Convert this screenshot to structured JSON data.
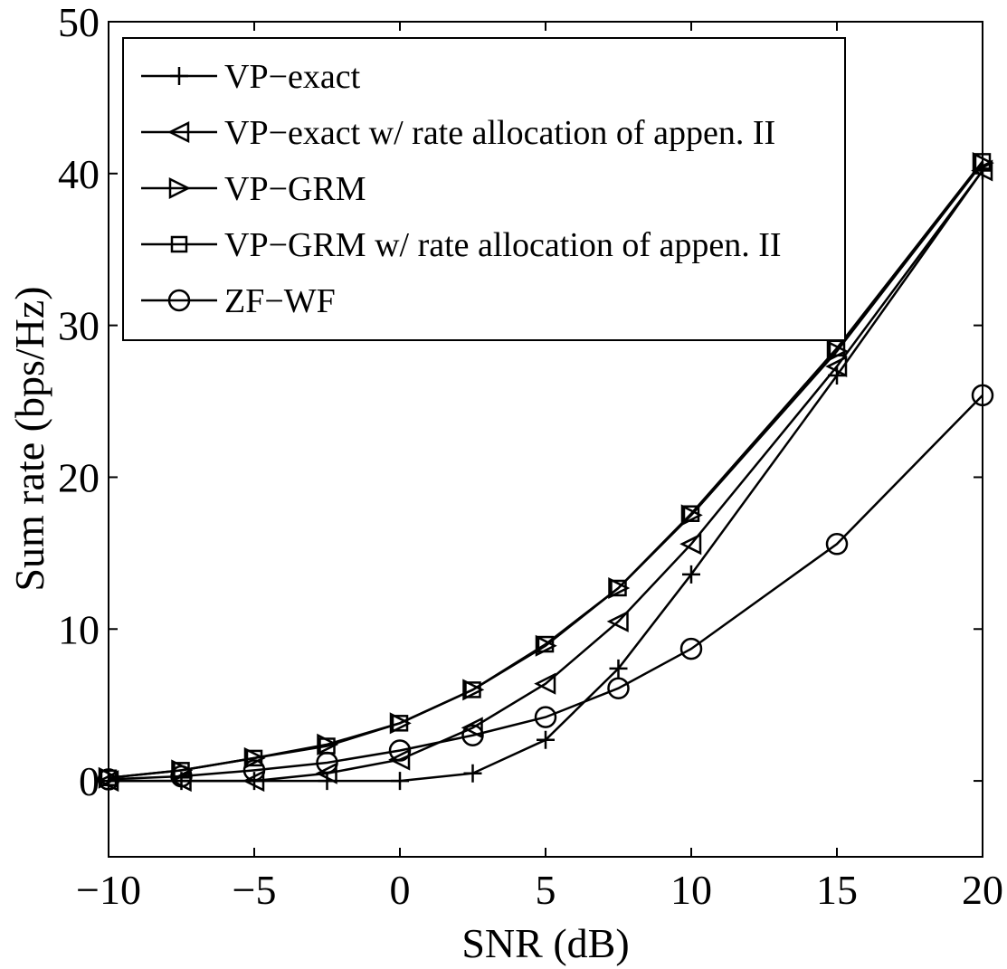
{
  "chart_data": {
    "type": "line",
    "title": "",
    "xlabel": "SNR (dB)",
    "ylabel": "Sum rate (bps/Hz)",
    "xlim": [
      -10,
      20
    ],
    "ylim": [
      -5,
      50
    ],
    "xticks": [
      -10,
      -5,
      0,
      5,
      10,
      15,
      20
    ],
    "yticks": [
      0,
      10,
      20,
      30,
      40,
      50
    ],
    "grid": false,
    "legend_position": "top-left",
    "x": [
      -10,
      -7.5,
      -5,
      -2.5,
      0,
      2.5,
      5,
      7.5,
      10,
      15,
      20
    ],
    "series": [
      {
        "name": "VP−exact",
        "marker": "plus",
        "values": [
          0.0,
          0.0,
          0.0,
          0.0,
          0.0,
          0.5,
          2.7,
          7.4,
          13.6,
          26.7,
          40.2
        ]
      },
      {
        "name": "VP−exact w/ rate allocation of appen. II",
        "marker": "triangle-left",
        "values": [
          0.0,
          0.0,
          0.0,
          0.5,
          1.4,
          3.5,
          6.4,
          10.5,
          15.6,
          27.3,
          40.2
        ]
      },
      {
        "name": "VP−GRM",
        "marker": "triangle-right",
        "values": [
          0.2,
          0.7,
          1.5,
          2.4,
          3.8,
          6.0,
          8.9,
          12.7,
          17.5,
          28.3,
          40.7
        ]
      },
      {
        "name": "VP−GRM w/ rate allocation of appen. II",
        "marker": "square",
        "values": [
          0.2,
          0.7,
          1.5,
          2.3,
          3.8,
          6.0,
          9.0,
          12.7,
          17.6,
          28.5,
          40.8
        ]
      },
      {
        "name": "ZF−WF",
        "marker": "circle",
        "values": [
          0.1,
          0.3,
          0.7,
          1.2,
          2.0,
          3.0,
          4.2,
          6.1,
          8.7,
          15.6,
          25.4
        ]
      }
    ]
  }
}
